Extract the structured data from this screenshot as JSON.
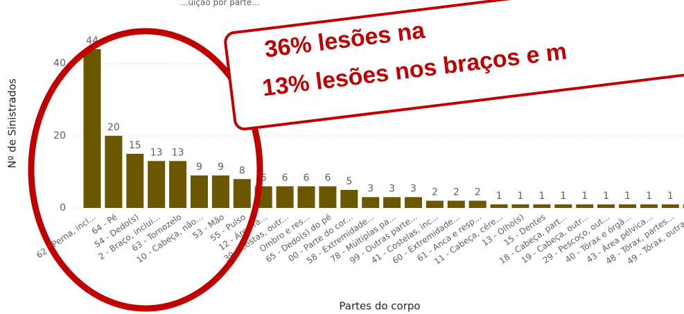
{
  "chart_data": {
    "type": "bar",
    "title": "...uição por parte...",
    "x_label": "Partes do corpo",
    "y_label": "Nº de Sinistrados",
    "categories": [
      "62 - Perna, incl...",
      "64 - Pé",
      "54 - Dedo(s)",
      "2 - Braço, inclui...",
      "63 - Tornozelo",
      "10 - Cabeça, não...",
      "53 - Mão",
      "55 - Pulso",
      "12 - Área fa...",
      "39 - Costas, outr...",
      "Ombro e res...",
      "65 - Dedo(s) do pé",
      "00 - Parte do cor...",
      "58 - Extremidade...",
      "78 - Múltiplas pa...",
      "99 - Outras parte...",
      "41 - Costelas, inc...",
      "60 - Extremidade...",
      "61 - Anca e resp...",
      "11 - Cabeça, cére...",
      "13 - Olho(s)",
      "15 - Dentes",
      "18 - Cabeça, part...",
      "19 - Cabeça, outr...",
      "29 - Pescoço, out...",
      "40 - Tórax e órgã...",
      "43 - Área pélvica...",
      "48 - Tórax, partes...",
      "49 - Tórax, outras..."
    ],
    "values": [
      44,
      20,
      15,
      13,
      13,
      9,
      9,
      8,
      6,
      6,
      6,
      6,
      5,
      3,
      3,
      3,
      2,
      2,
      2,
      1,
      1,
      1,
      1,
      1,
      1,
      1,
      1,
      1,
      1
    ],
    "color": "#6b5700",
    "ylim": [
      0,
      48
    ],
    "yticks": [
      0,
      20,
      40
    ],
    "grid": true,
    "annotations": [
      "36% lesões na",
      "13% lesões nos braços e m"
    ]
  }
}
